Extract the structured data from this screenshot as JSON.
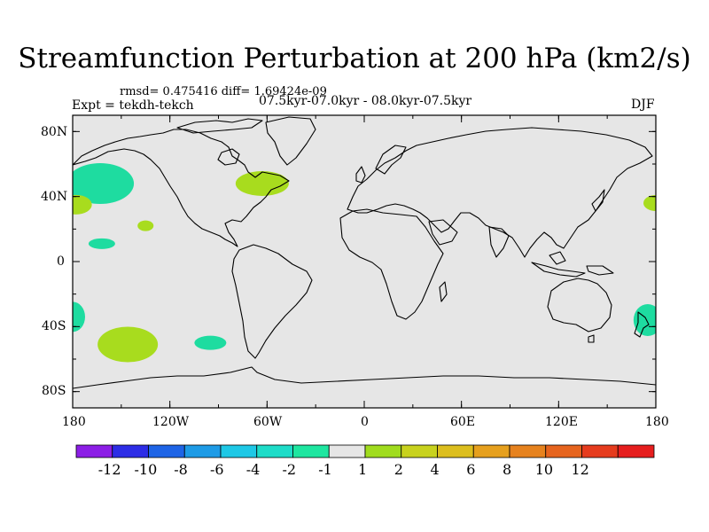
{
  "title": "Streamfunction Perturbation at 200 hPa (km2/s)",
  "stats": "rmsd= 0.475416 diff= 1.69424e-09",
  "experiment": "Expt = tekdh-tekch",
  "period": "07.5kyr-07.0kyr - 08.0kyr-07.5kyr",
  "season": "DJF",
  "map": {
    "lat_range": [
      -90,
      90
    ],
    "lon_range": [
      -180,
      180
    ],
    "lat_ticks": [
      "80N",
      "40N",
      "0",
      "40S",
      "80S"
    ],
    "lon_ticks": [
      "180",
      "120W",
      "60W",
      "0",
      "60E",
      "120E",
      "180"
    ],
    "background": "#e6e6e6"
  },
  "colorbar": {
    "colors": [
      "#8c1ee6",
      "#2d2de6",
      "#1e64e6",
      "#1e9be6",
      "#1ec8e6",
      "#1edcc8",
      "#1ee6a0",
      "#e6e6e6",
      "#a0dc1e",
      "#c8d21e",
      "#dcbe1e",
      "#e6a01e",
      "#e6821e",
      "#e6641e",
      "#e63c1e",
      "#e61e1e"
    ],
    "labels": [
      "-12",
      "-10",
      "-8",
      "-6",
      "-4",
      "-2",
      "-1",
      "1",
      "2",
      "4",
      "6",
      "8",
      "10",
      "12"
    ]
  },
  "anomalies": [
    {
      "lon": -163,
      "lat": 48,
      "value": -1,
      "color": "#1edca0"
    },
    {
      "lon": -178,
      "lat": 35,
      "value": 2,
      "color": "#a8dc1e"
    },
    {
      "lon": -63,
      "lat": 48,
      "value": 2,
      "color": "#a8dc1e"
    },
    {
      "lon": -135,
      "lat": 22,
      "value": 2,
      "color": "#a8dc1e"
    },
    {
      "lon": -162,
      "lat": 11,
      "value": -1,
      "color": "#1edca0"
    },
    {
      "lon": -180,
      "lat": -34,
      "value": -1,
      "color": "#1edca0"
    },
    {
      "lon": -146,
      "lat": -51,
      "value": 2,
      "color": "#a8dc1e"
    },
    {
      "lon": -95,
      "lat": -50,
      "value": -1,
      "color": "#1edca0"
    },
    {
      "lon": 175,
      "lat": -36,
      "value": -1,
      "color": "#1edca0"
    },
    {
      "lon": 180,
      "lat": 36,
      "value": 2,
      "color": "#a8dc1e"
    }
  ]
}
